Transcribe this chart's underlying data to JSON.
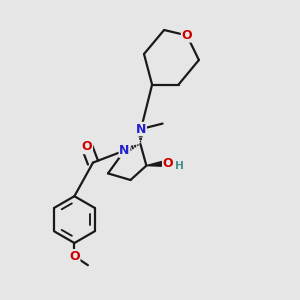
{
  "bg_color": "#e6e6e6",
  "bond_color": "#1a1a1a",
  "bond_width": 1.6,
  "dbo": 0.018,
  "atom_colors": {
    "O": "#cc0000",
    "N": "#2222cc",
    "H": "#4a9090",
    "C": "#1a1a1a"
  },
  "fs": 9.0,
  "fig_width": 3.0,
  "fig_height": 3.0,
  "dpi": 100
}
